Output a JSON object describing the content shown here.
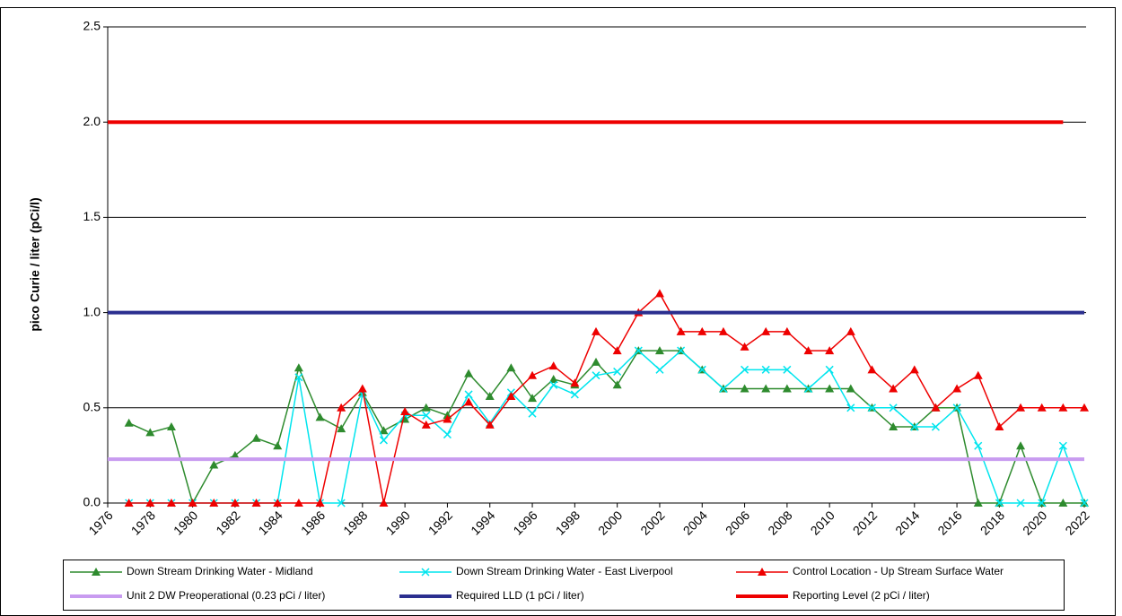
{
  "chart_data": {
    "type": "line",
    "y_label": "pico Curie / liter (pCi/l)",
    "x": [
      1977,
      1978,
      1979,
      1980,
      1981,
      1982,
      1983,
      1984,
      1985,
      1986,
      1987,
      1988,
      1989,
      1990,
      1991,
      1992,
      1993,
      1994,
      1995,
      1996,
      1997,
      1998,
      1999,
      2000,
      2001,
      2002,
      2003,
      2004,
      2005,
      2006,
      2007,
      2008,
      2009,
      2010,
      2011,
      2012,
      2013,
      2014,
      2015,
      2016,
      2017,
      2018,
      2019,
      2020,
      2021,
      2022
    ],
    "xlim": [
      1976,
      2022
    ],
    "xticks": [
      1976,
      1978,
      1980,
      1982,
      1984,
      1986,
      1988,
      1990,
      1992,
      1994,
      1996,
      1998,
      2000,
      2002,
      2004,
      2006,
      2008,
      2010,
      2012,
      2014,
      2016,
      2018,
      2020,
      2022
    ],
    "ylim": [
      0,
      2.5
    ],
    "yticks": [
      {
        "value": 0,
        "label": "0.0"
      },
      0.5,
      {
        "value": 1,
        "label": "1.0"
      },
      1.5,
      {
        "value": 2,
        "label": "2.0"
      },
      2.5
    ],
    "grid": true,
    "series": [
      {
        "name": "Down Stream Drinking Water - Midland",
        "color": "#2e8b2e",
        "marker": "triangle",
        "values": [
          0.42,
          0.37,
          0.4,
          0,
          0.2,
          0.25,
          0.34,
          0.3,
          0.71,
          0.45,
          0.39,
          0.58,
          0.38,
          0.44,
          0.5,
          0.46,
          0.68,
          0.56,
          0.71,
          0.55,
          0.65,
          0.62,
          0.74,
          0.62,
          0.8,
          0.8,
          0.8,
          0.7,
          0.6,
          0.6,
          0.6,
          0.6,
          0.6,
          0.6,
          0.6,
          0.5,
          0.4,
          0.4,
          0.5,
          0.5,
          0,
          0,
          0.3,
          0,
          0,
          0
        ]
      },
      {
        "name": "Down Stream Drinking Water - East Liverpool",
        "color": "#00e5ee",
        "marker": "x",
        "values": [
          0,
          0,
          0,
          0,
          0,
          0,
          0,
          0,
          0.66,
          0,
          0,
          0.57,
          0.33,
          0.46,
          0.46,
          0.36,
          0.57,
          0.42,
          0.58,
          0.47,
          0.62,
          0.57,
          0.67,
          0.69,
          0.8,
          0.7,
          0.8,
          0.7,
          0.6,
          0.7,
          0.7,
          0.7,
          0.6,
          0.7,
          0.5,
          0.5,
          0.5,
          0.4,
          0.4,
          0.5,
          0.3,
          0,
          0,
          0,
          0.3,
          0
        ]
      },
      {
        "name": "Control Location - Up Stream Surface Water",
        "color": "#ee0000",
        "marker": "triangle",
        "values": [
          0,
          0,
          0,
          0,
          0,
          0,
          0,
          0,
          0,
          0,
          0.5,
          0.6,
          0,
          0.48,
          0.41,
          0.44,
          0.53,
          0.41,
          0.56,
          0.67,
          0.72,
          0.63,
          0.9,
          0.8,
          1.0,
          1.1,
          0.9,
          0.9,
          0.9,
          0.82,
          0.9,
          0.9,
          0.8,
          0.8,
          0.9,
          0.7,
          0.6,
          0.7,
          0.5,
          0.6,
          0.67,
          0.4,
          0.5,
          0.5,
          0.5,
          0.5
        ]
      },
      {
        "name": "Unit 2 DW Preoperational (0.23 pCi / liter)",
        "color": "#c89bf0",
        "x": [
          1976,
          2022
        ],
        "values": [
          0.23,
          0.23
        ]
      },
      {
        "name": "Required LLD (1 pCi / liter)",
        "color": "#2b2f8f",
        "x": [
          1976,
          2022
        ],
        "values": [
          1,
          1
        ]
      },
      {
        "name": "Reporting Level (2 pCi / liter)",
        "color": "#ee0000",
        "x": [
          1976,
          2021
        ],
        "values": [
          2,
          2
        ]
      }
    ]
  }
}
